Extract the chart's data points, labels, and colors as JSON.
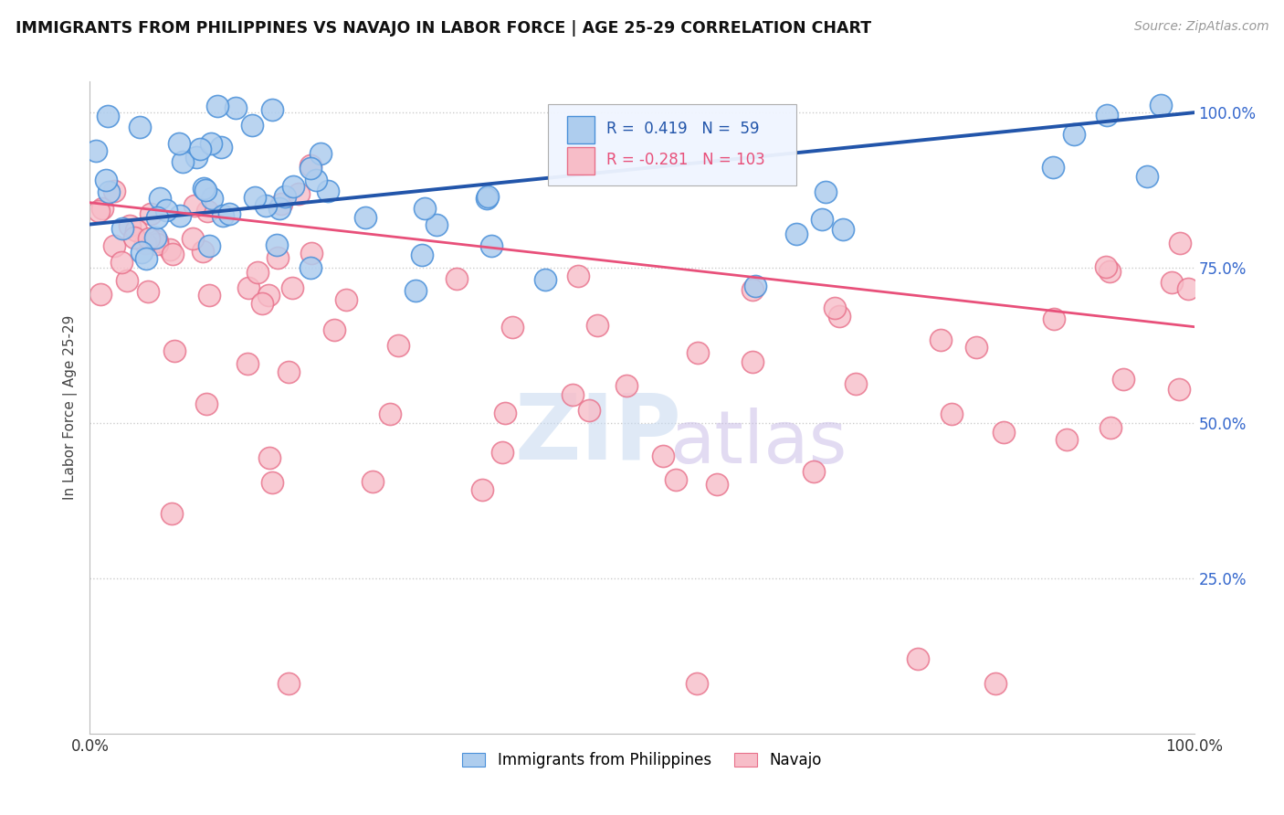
{
  "title": "IMMIGRANTS FROM PHILIPPINES VS NAVAJO IN LABOR FORCE | AGE 25-29 CORRELATION CHART",
  "source": "Source: ZipAtlas.com",
  "ylabel": "In Labor Force | Age 25-29",
  "xlim": [
    0.0,
    1.0
  ],
  "ylim": [
    0.0,
    1.05
  ],
  "y_tick_values": [
    0.25,
    0.5,
    0.75,
    1.0
  ],
  "y_tick_labels": [
    "25.0%",
    "50.0%",
    "75.0%",
    "100.0%"
  ],
  "blue_R": 0.419,
  "blue_N": 59,
  "pink_R": -0.281,
  "pink_N": 103,
  "blue_color": "#AECDEE",
  "blue_edge_color": "#4A90D9",
  "blue_line_color": "#2255AA",
  "pink_color": "#F7BDC8",
  "pink_edge_color": "#E8708A",
  "pink_line_color": "#E8507A",
  "legend_label_blue": "Immigrants from Philippines",
  "legend_label_pink": "Navajo",
  "tick_color": "#3366CC",
  "blue_line_start_y": 0.82,
  "blue_line_end_y": 1.0,
  "pink_line_start_y": 0.855,
  "pink_line_end_y": 0.655
}
